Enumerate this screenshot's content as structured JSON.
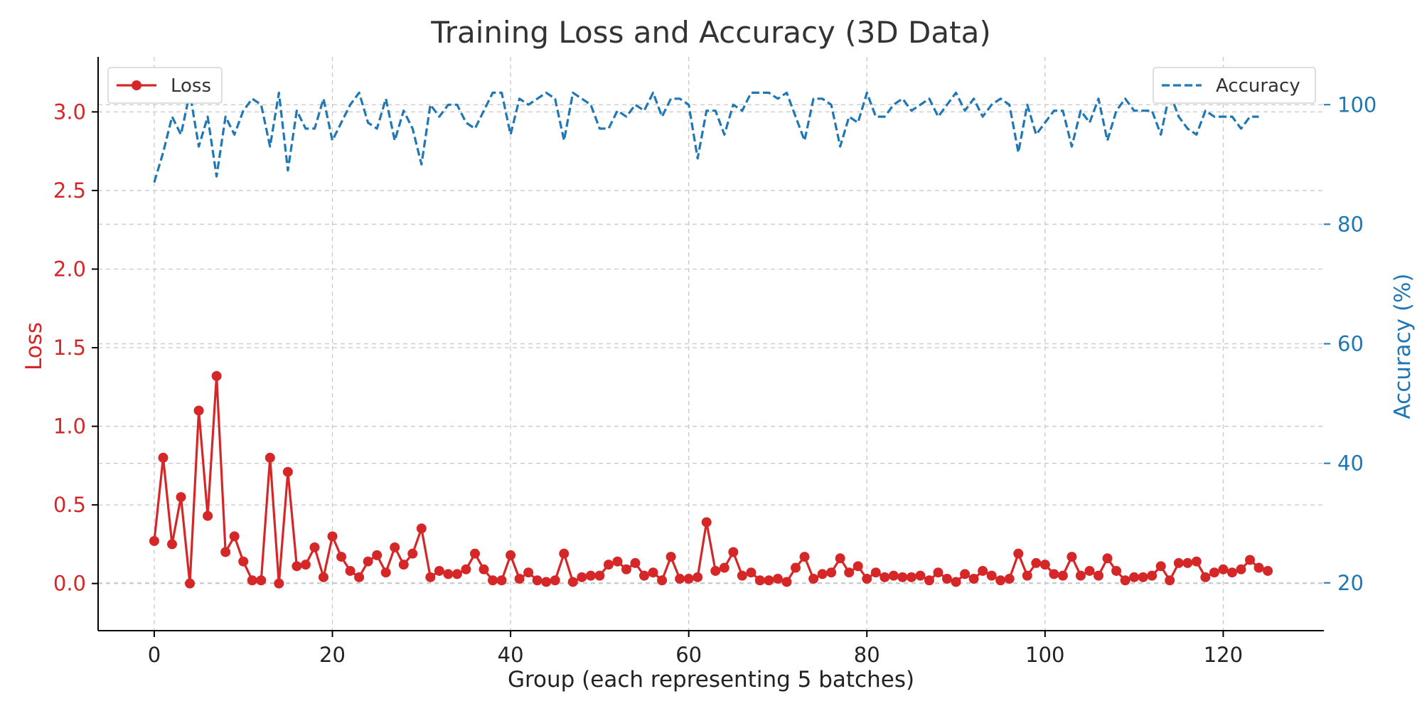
{
  "chart_data": {
    "type": "line",
    "title": "Training Loss and Accuracy (3D Data)",
    "xlabel": "Group (each representing 5 batches)",
    "ylabel_left": "Loss",
    "ylabel_right": "Accuracy (%)",
    "xlim": [
      -6.3,
      131.3
    ],
    "ylim_left": [
      -0.3,
      3.35
    ],
    "ylim_right": [
      12,
      108
    ],
    "x_ticks": [
      0,
      20,
      40,
      60,
      80,
      100,
      120
    ],
    "y_ticks_left": [
      0.0,
      0.5,
      1.0,
      1.5,
      2.0,
      2.5,
      3.0
    ],
    "y_ticks_right": [
      20,
      40,
      60,
      80,
      100
    ],
    "grid": true,
    "colors": {
      "loss": "#d62728",
      "accuracy": "#1f77b4",
      "axis": "#000000",
      "grid": "#c8c8c8",
      "title": "#333333"
    },
    "legends": [
      {
        "label": "Loss",
        "placement": "top-left",
        "series": "loss"
      },
      {
        "label": "Accuracy",
        "placement": "top-right",
        "series": "accuracy"
      }
    ],
    "series": [
      {
        "name": "Loss",
        "axis": "left",
        "style": "solid-marker",
        "x_start": 0,
        "values": [
          0.27,
          0.8,
          0.25,
          0.55,
          0.0,
          1.1,
          0.43,
          1.32,
          0.2,
          0.3,
          0.14,
          0.02,
          0.02,
          0.8,
          0.0,
          0.71,
          0.11,
          0.12,
          0.23,
          0.04,
          0.3,
          0.17,
          0.08,
          0.04,
          0.14,
          0.18,
          0.07,
          0.23,
          0.12,
          0.19,
          0.35,
          0.04,
          0.08,
          0.06,
          0.06,
          0.09,
          0.19,
          0.09,
          0.02,
          0.02,
          0.18,
          0.03,
          0.07,
          0.02,
          0.01,
          0.02,
          0.19,
          0.01,
          0.04,
          0.05,
          0.05,
          0.12,
          0.14,
          0.09,
          0.13,
          0.05,
          0.07,
          0.02,
          0.17,
          0.03,
          0.03,
          0.04,
          0.39,
          0.08,
          0.1,
          0.2,
          0.05,
          0.07,
          0.02,
          0.02,
          0.03,
          0.01,
          0.1,
          0.17,
          0.03,
          0.06,
          0.07,
          0.16,
          0.07,
          0.11,
          0.03,
          0.07,
          0.04,
          0.05,
          0.04,
          0.04,
          0.05,
          0.02,
          0.07,
          0.03,
          0.01,
          0.06,
          0.03,
          0.08,
          0.05,
          0.02,
          0.03,
          0.19,
          0.05,
          0.13,
          0.12,
          0.06,
          0.05,
          0.17,
          0.05,
          0.08,
          0.05,
          0.16,
          0.08,
          0.02,
          0.04,
          0.04,
          0.05,
          0.11,
          0.02,
          0.13,
          0.13,
          0.14,
          0.04,
          0.07,
          0.09,
          0.07,
          0.09,
          0.15,
          0.1,
          0.08
        ]
      },
      {
        "name": "Accuracy",
        "axis": "right",
        "style": "dashed",
        "x_start": 0,
        "values": [
          87,
          92,
          98,
          95,
          102,
          93,
          98,
          88,
          98,
          95,
          99,
          101,
          100,
          93,
          102,
          89,
          99,
          96,
          96,
          101,
          94,
          97,
          100,
          102,
          97,
          96,
          101,
          94,
          99,
          96,
          90,
          100,
          98,
          100,
          100,
          97,
          96,
          99,
          102,
          102,
          95,
          101,
          100,
          101,
          102,
          101,
          94,
          102,
          101,
          100,
          96,
          96,
          99,
          98,
          100,
          99,
          102,
          98,
          101,
          101,
          100,
          91,
          99,
          99,
          95,
          100,
          99,
          102,
          102,
          102,
          101,
          102,
          98,
          94,
          101,
          101,
          100,
          93,
          98,
          97,
          102,
          98,
          98,
          100,
          101,
          99,
          100,
          101,
          98,
          100,
          102,
          99,
          101,
          98,
          100,
          101,
          100,
          92,
          100,
          95,
          97,
          99,
          99,
          93,
          99,
          97,
          101,
          94,
          99,
          101,
          99,
          99,
          99,
          95,
          102,
          98,
          96,
          95,
          99,
          98,
          98,
          98,
          96,
          98,
          98
        ]
      }
    ]
  }
}
